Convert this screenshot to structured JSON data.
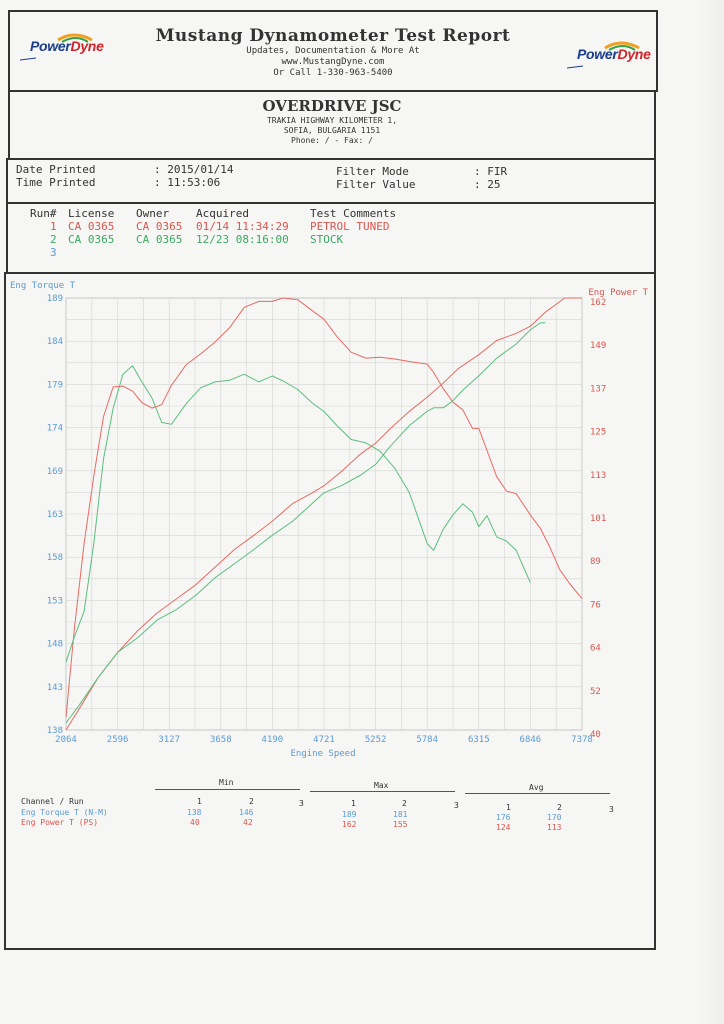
{
  "header": {
    "title": "Mustang Dynamometer Test Report",
    "lines": [
      "Updates, Documentation & More At",
      "www.MustangDyne.com",
      "Or Call 1-330-963-5400"
    ],
    "logo_left": {
      "part1": "Power",
      "part2": "Dyne"
    },
    "logo_right": {
      "part1": "Power",
      "part2": "Dyne"
    }
  },
  "company": {
    "name": "OVERDRIVE JSC",
    "address1": "TRAKIA HIGHWAY KILOMETER 1,",
    "address2": "SOFIA, BULGARIA  1151",
    "phone": "Phone:  /   - Fax:  /"
  },
  "info": {
    "date_label": "Date Printed",
    "date_value": ": 2015/01/14",
    "time_label": "Time Printed",
    "time_value": ": 11:53:06",
    "filter_mode_label": "Filter Mode",
    "filter_mode_value": ":  FIR",
    "filter_value_label": "Filter Value",
    "filter_value_value": ":  25"
  },
  "runs": {
    "headers": {
      "run": "Run#",
      "license": "License",
      "owner": "Owner",
      "acquired": "Acquired",
      "comments": "Test Comments"
    },
    "rows": [
      {
        "run": "1",
        "license": "CA 0365",
        "owner": "CA 0365",
        "acquired": "01/14 11:34:29",
        "comments": "PETROL TUNED",
        "color": "#d9564f"
      },
      {
        "run": "2",
        "license": "CA 0365",
        "owner": "CA 0365",
        "acquired": "12/23 08:16:00",
        "comments": "STOCK",
        "color": "#3ca864"
      },
      {
        "run": "3",
        "license": "",
        "owner": "",
        "acquired": "",
        "comments": "",
        "color": "#5b9bd5"
      }
    ]
  },
  "chart_data": {
    "type": "line",
    "xlabel": "Engine Speed",
    "ylabel_left": "Eng Torque T",
    "ylabel_right": "Eng Power T",
    "x_ticks": [
      "2064",
      "2596",
      "3127",
      "3658",
      "4190",
      "4721",
      "5252",
      "5784",
      "6315",
      "6846",
      "7378"
    ],
    "y_left_ticks": [
      "189",
      "184",
      "179",
      "174",
      "169",
      "163",
      "158",
      "153",
      "148",
      "143",
      "138"
    ],
    "y_right_ticks": [
      "162",
      "149",
      "137",
      "125",
      "113",
      "101",
      "89",
      "76",
      "64",
      "52",
      "40"
    ],
    "xlim": [
      2064,
      7378
    ],
    "ylim_left": [
      138,
      189
    ],
    "ylim_right": [
      40,
      162
    ],
    "grid": true,
    "colors": {
      "grid": "#d4d4d4",
      "red": "#e86a63",
      "green": "#5bbf7f",
      "axis_text": "#5b9bd5"
    },
    "series": [
      {
        "name": "PETROL TUNED",
        "axis": "left",
        "color": "#e86a63",
        "x": [
          2064,
          2150,
          2250,
          2350,
          2450,
          2550,
          2650,
          2750,
          2850,
          2950,
          3050,
          3150,
          3300,
          3450,
          3600,
          3750,
          3900,
          4050,
          4190,
          4300,
          4450,
          4600,
          4721,
          4850,
          5000,
          5150,
          5300,
          5450,
          5600,
          5784,
          5850,
          5950,
          6050,
          6150,
          6250,
          6315,
          6400,
          6500,
          6600,
          6700,
          6846,
          6950,
          7050,
          7150,
          7250,
          7378
        ],
        "y": [
          139.5,
          150,
          160,
          168,
          175,
          178.5,
          178.6,
          178,
          176.6,
          176,
          176.4,
          178.7,
          181.1,
          182.4,
          183.8,
          185.5,
          187.9,
          188.6,
          188.6,
          189,
          188.8,
          187.5,
          186.5,
          184.5,
          182.6,
          181.9,
          182,
          181.8,
          181.5,
          181.2,
          180.2,
          178.3,
          176.7,
          175.8,
          173.6,
          173.6,
          171,
          167.9,
          166.2,
          165.9,
          163.4,
          161.8,
          159.5,
          156.9,
          155.3,
          153.5
        ]
      },
      {
        "name": "STOCK",
        "axis": "left",
        "color": "#5bbf7f",
        "x": [
          2064,
          2150,
          2250,
          2350,
          2450,
          2550,
          2650,
          2750,
          2850,
          2950,
          3050,
          3150,
          3300,
          3450,
          3600,
          3750,
          3900,
          4050,
          4190,
          4300,
          4450,
          4600,
          4721,
          4850,
          5000,
          5150,
          5300,
          5450,
          5600,
          5784,
          5850,
          5950,
          6050,
          6150,
          6250,
          6315,
          6400,
          6500,
          6600,
          6700,
          6846
        ],
        "y": [
          146,
          149,
          152,
          160,
          170,
          176,
          180,
          181,
          179,
          177.2,
          174.3,
          174.1,
          176.5,
          178.4,
          179.1,
          179.3,
          180,
          179.1,
          179.8,
          179.2,
          178.2,
          176.6,
          175.6,
          174,
          172.3,
          171.9,
          170.9,
          168.9,
          166,
          160,
          159.2,
          161.7,
          163.4,
          164.7,
          163.7,
          162,
          163.3,
          160.8,
          160.3,
          159.2,
          155.4
        ]
      },
      {
        "name": "PETROL TUNED",
        "axis": "right",
        "color": "#e86a63",
        "x": [
          2064,
          2200,
          2400,
          2600,
          2800,
          3000,
          3200,
          3400,
          3600,
          3800,
          4000,
          4190,
          4400,
          4600,
          4721,
          4900,
          5100,
          5252,
          5400,
          5600,
          5784,
          5950,
          6100,
          6315,
          6500,
          6700,
          6846,
          7000,
          7100,
          7200,
          7378
        ],
        "y": [
          40,
          46,
          55,
          62,
          68,
          73,
          77,
          81,
          86,
          91,
          95,
          99,
          104,
          107,
          109,
          113,
          118,
          121,
          125,
          130,
          134,
          138,
          142,
          146,
          150,
          152,
          154,
          158,
          160,
          162,
          162
        ]
      },
      {
        "name": "STOCK",
        "axis": "right",
        "color": "#5bbf7f",
        "x": [
          2064,
          2200,
          2400,
          2600,
          2800,
          3000,
          3200,
          3400,
          3600,
          3800,
          4000,
          4190,
          4400,
          4600,
          4721,
          4900,
          5100,
          5252,
          5400,
          5600,
          5784,
          5850,
          5950,
          6050,
          6150,
          6315,
          6500,
          6700,
          6846,
          6950,
          7000
        ],
        "y": [
          42,
          47,
          55,
          62,
          66,
          71,
          74,
          78,
          83,
          87,
          91,
          95,
          99,
          104,
          107,
          109,
          112,
          115,
          120,
          126,
          130,
          131,
          131,
          133,
          136,
          140,
          145,
          149,
          153,
          155,
          155
        ]
      }
    ]
  },
  "stats": {
    "group_headers": {
      "min": "Min",
      "max": "Max",
      "avg": "Avg"
    },
    "channel_label": "Channel / Run",
    "run_numbers": [
      "1",
      "2",
      "3"
    ],
    "rows": [
      {
        "label": "Eng Torque T (N-M)",
        "color": "#5b9bd5",
        "min": [
          "138",
          "146"
        ],
        "max": [
          "189",
          "181"
        ],
        "avg": [
          "176",
          "170"
        ]
      },
      {
        "label": "Eng Power T (PS)",
        "color": "#d9564f",
        "min": [
          "40",
          "42"
        ],
        "max": [
          "162",
          "155"
        ],
        "avg": [
          "124",
          "113"
        ]
      }
    ]
  }
}
